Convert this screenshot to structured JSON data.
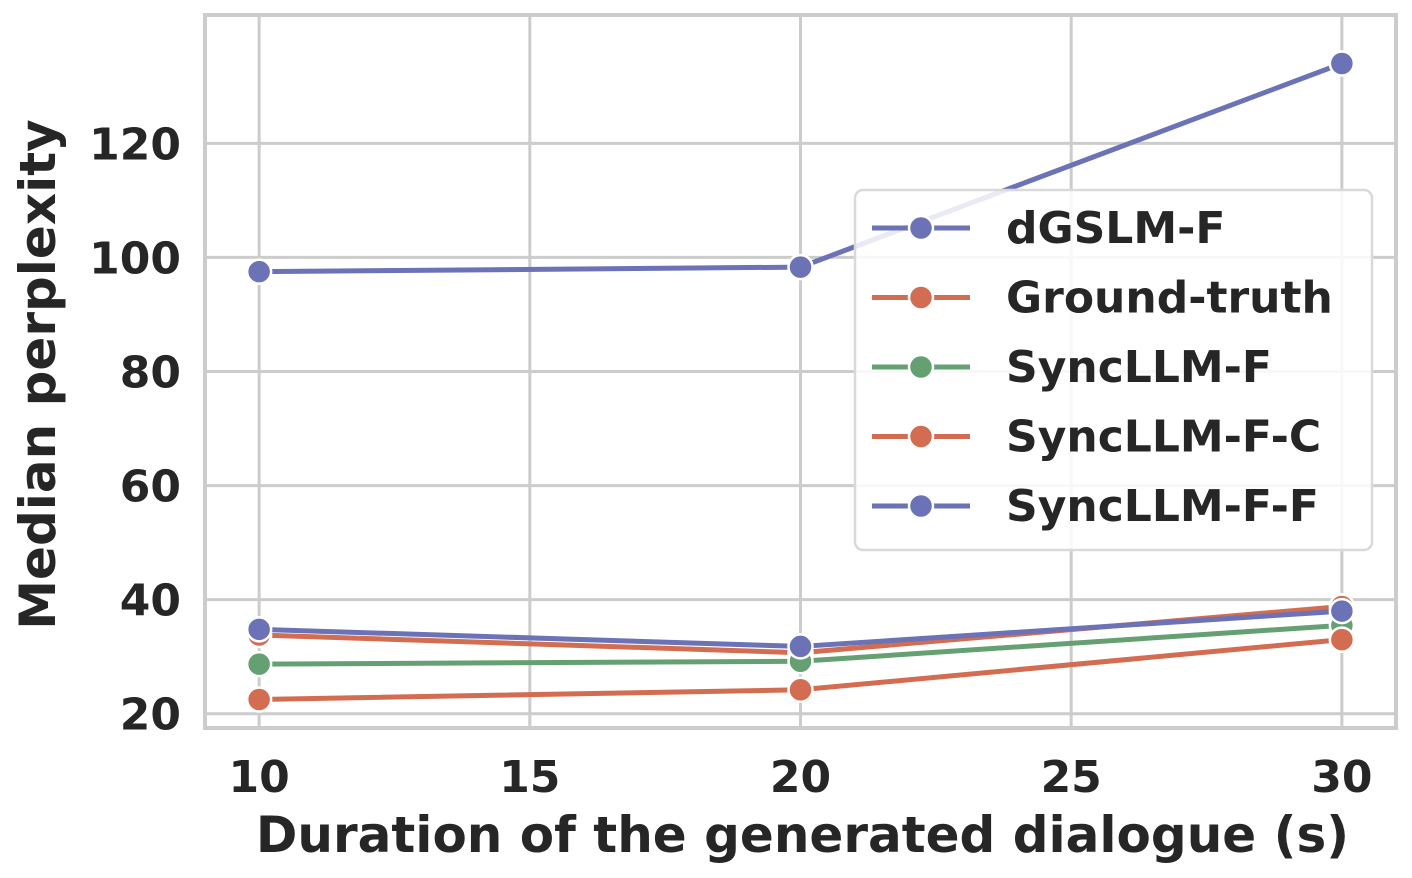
{
  "chart_data": {
    "type": "line",
    "title": "",
    "xlabel": "Duration of the generated dialogue (s)",
    "ylabel": "Median perplexity",
    "xlim": [
      9,
      31
    ],
    "ylim": [
      17.5,
      142.5
    ],
    "xticks": [
      10,
      15,
      20,
      25,
      30
    ],
    "yticks": [
      20,
      40,
      60,
      80,
      100,
      120
    ],
    "grid": true,
    "legend_position": "center-right",
    "x": [
      10,
      20,
      30
    ],
    "series": [
      {
        "name": "dGSLM-F",
        "values": [
          97.5,
          98.3,
          134
        ],
        "color": "#6b72b5"
      },
      {
        "name": "Ground-truth",
        "values": [
          33.8,
          30.7,
          38.8
        ],
        "color": "#d36d52"
      },
      {
        "name": "SyncLLM-F",
        "values": [
          28.7,
          29.2,
          35.5
        ],
        "color": "#64a072"
      },
      {
        "name": "SyncLLM-F-C",
        "values": [
          22.5,
          24.2,
          33.0
        ],
        "color": "#d36d52"
      },
      {
        "name": "SyncLLM-F-F",
        "values": [
          34.8,
          31.8,
          38.0
        ],
        "color": "#6b72b5"
      }
    ]
  }
}
